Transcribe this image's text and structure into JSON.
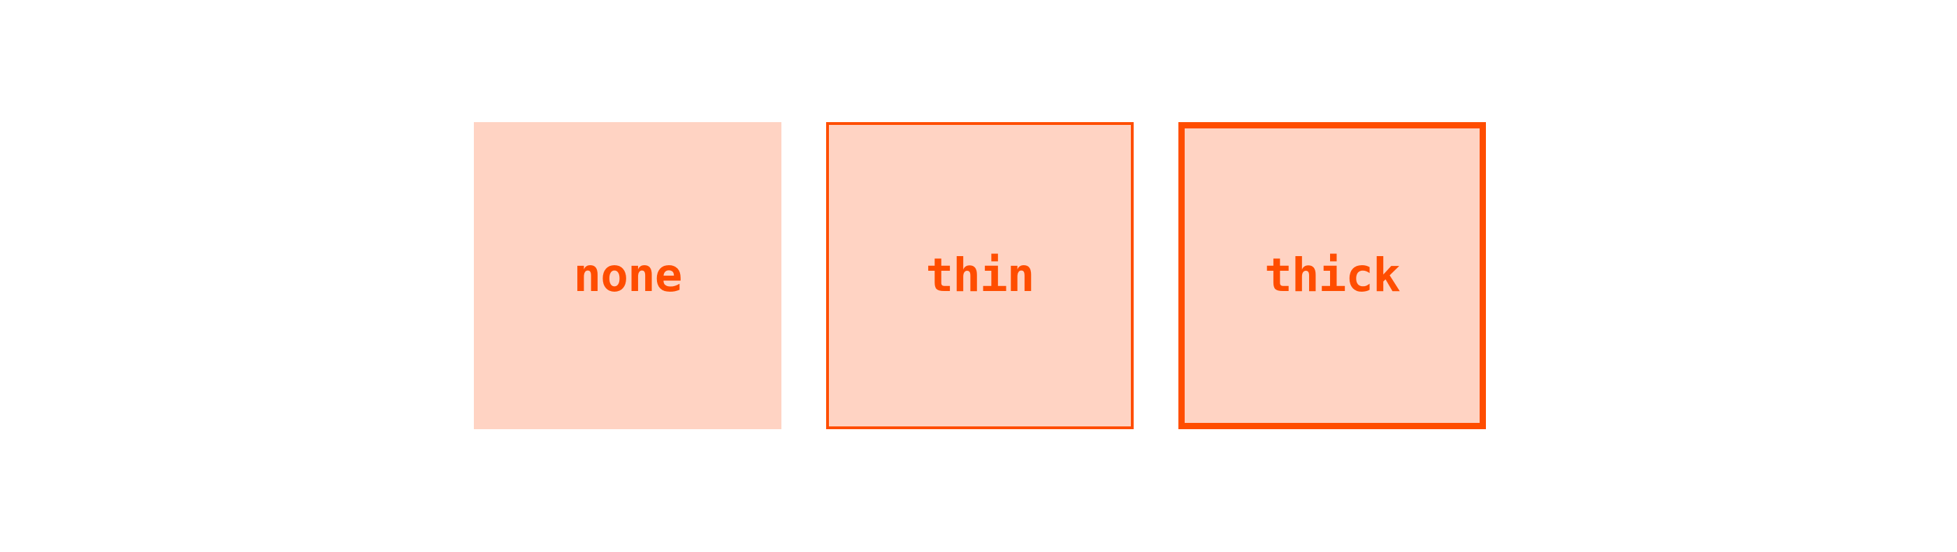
{
  "colors": {
    "accent": "#ff4d00",
    "fill": "#ffd3c3",
    "background": "#ffffff"
  },
  "boxes": [
    {
      "label": "none",
      "border": "none"
    },
    {
      "label": "thin",
      "border": "thin"
    },
    {
      "label": "thick",
      "border": "thick"
    }
  ]
}
